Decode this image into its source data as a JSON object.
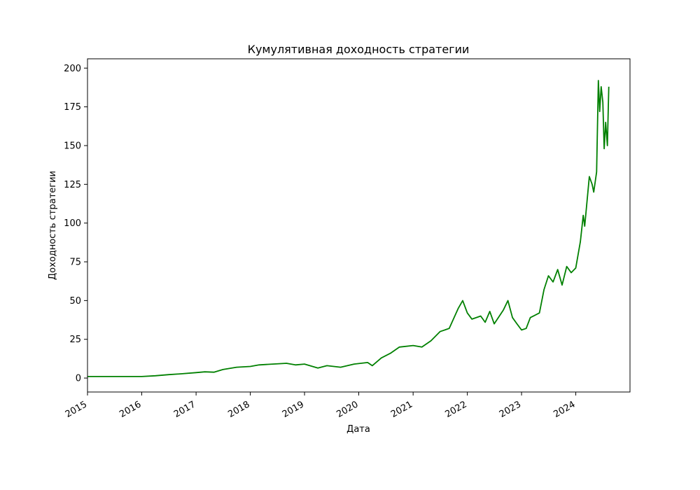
{
  "chart_data": {
    "type": "line",
    "title": "Кумулятивная доходность стратегии",
    "xlabel": "Дата",
    "ylabel": "Доходность стратегии",
    "xlim": [
      "2015-01-01",
      "2024-12-31"
    ],
    "ylim": [
      -9,
      206
    ],
    "x_ticks": [
      "2015",
      "2016",
      "2017",
      "2018",
      "2019",
      "2020",
      "2021",
      "2022",
      "2023",
      "2024"
    ],
    "y_ticks": [
      0,
      25,
      50,
      75,
      100,
      125,
      150,
      175,
      200
    ],
    "grid": false,
    "line_color": "#008000",
    "series": [
      {
        "name": "",
        "x": [
          "2015-01-01",
          "2015-07-01",
          "2016-01-01",
          "2016-04-01",
          "2016-07-01",
          "2016-10-01",
          "2017-01-01",
          "2017-03-01",
          "2017-05-01",
          "2017-07-01",
          "2017-10-01",
          "2018-01-01",
          "2018-03-01",
          "2018-06-01",
          "2018-09-01",
          "2018-11-01",
          "2019-01-01",
          "2019-04-01",
          "2019-06-01",
          "2019-09-01",
          "2019-12-01",
          "2020-03-01",
          "2020-04-01",
          "2020-06-01",
          "2020-08-01",
          "2020-10-01",
          "2021-01-01",
          "2021-03-01",
          "2021-05-01",
          "2021-07-01",
          "2021-09-01",
          "2021-11-01",
          "2021-12-01",
          "2022-01-01",
          "2022-02-01",
          "2022-04-01",
          "2022-05-01",
          "2022-06-01",
          "2022-07-01",
          "2022-09-01",
          "2022-10-01",
          "2022-11-01",
          "2022-12-01",
          "2023-01-01",
          "2023-02-01",
          "2023-03-01",
          "2023-05-01",
          "2023-06-01",
          "2023-07-01",
          "2023-08-01",
          "2023-09-01",
          "2023-10-01",
          "2023-11-01",
          "2023-12-01",
          "2024-01-01",
          "2024-02-01",
          "2024-02-20",
          "2024-03-01",
          "2024-04-01",
          "2024-04-20",
          "2024-05-01",
          "2024-05-20",
          "2024-06-01",
          "2024-06-10",
          "2024-06-20",
          "2024-07-01",
          "2024-07-10",
          "2024-07-20",
          "2024-08-01",
          "2024-08-10"
        ],
        "y": [
          1,
          1,
          1,
          1.5,
          2.2,
          2.8,
          3.5,
          4,
          3.8,
          5.5,
          7,
          7.5,
          8.5,
          9,
          9.5,
          8.5,
          9,
          6.5,
          8,
          7,
          9,
          10,
          8,
          13,
          16,
          20,
          21,
          20,
          24,
          30,
          32,
          45,
          50,
          42,
          38,
          40,
          36,
          43,
          35,
          44,
          50,
          39,
          35,
          31,
          32,
          39,
          42,
          57,
          66,
          62,
          70,
          60,
          72,
          68,
          71,
          88,
          105,
          98,
          130,
          125,
          120,
          133,
          192,
          172,
          188,
          178,
          148,
          165,
          150,
          188
        ]
      }
    ]
  }
}
